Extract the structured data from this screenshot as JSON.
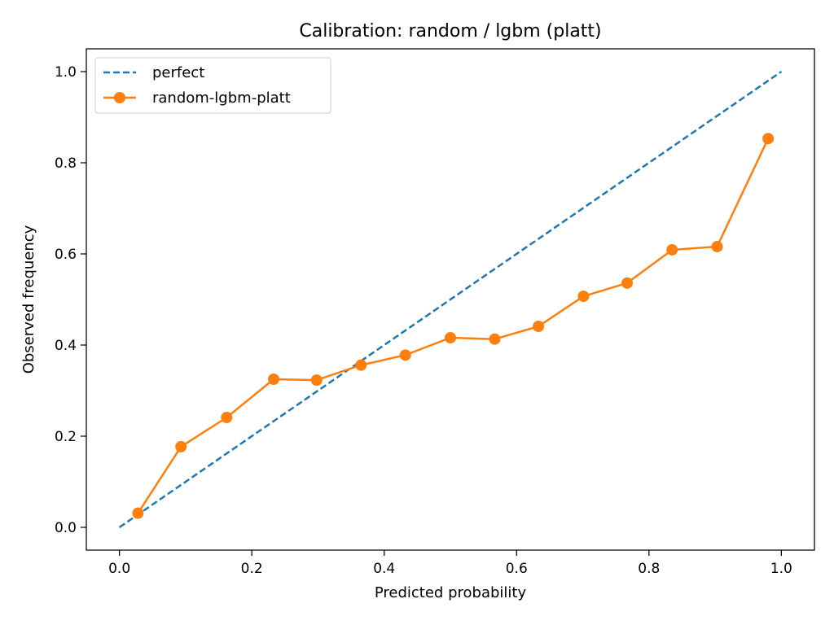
{
  "chart_data": {
    "type": "line",
    "title": "Calibration: random / lgbm (platt)",
    "xlabel": "Predicted probability",
    "ylabel": "Observed frequency",
    "xlim": [
      -0.05,
      1.05
    ],
    "ylim": [
      -0.05,
      1.05
    ],
    "xticks": [
      0.0,
      0.2,
      0.4,
      0.6,
      0.8,
      1.0
    ],
    "xtick_labels": [
      "0.0",
      "0.2",
      "0.4",
      "0.6",
      "0.8",
      "1.0"
    ],
    "yticks": [
      0.0,
      0.2,
      0.4,
      0.6,
      0.8,
      1.0
    ],
    "ytick_labels": [
      "0.0",
      "0.2",
      "0.4",
      "0.6",
      "0.8",
      "1.0"
    ],
    "grid": false,
    "legend_position": "top-left",
    "series": [
      {
        "name": "perfect",
        "style": "dashed",
        "marker": "none",
        "color": "#1f77b4",
        "x": [
          0.0,
          1.0
        ],
        "y": [
          0.0,
          1.0
        ]
      },
      {
        "name": "random-lgbm-platt",
        "style": "solid",
        "marker": "circle",
        "color": "#ff7f0e",
        "x": [
          0.028,
          0.093,
          0.162,
          0.233,
          0.298,
          0.365,
          0.432,
          0.5,
          0.567,
          0.633,
          0.701,
          0.767,
          0.835,
          0.903,
          0.98
        ],
        "y": [
          0.031,
          0.177,
          0.241,
          0.325,
          0.323,
          0.356,
          0.378,
          0.416,
          0.413,
          0.441,
          0.507,
          0.536,
          0.609,
          0.616,
          0.853
        ]
      }
    ]
  }
}
